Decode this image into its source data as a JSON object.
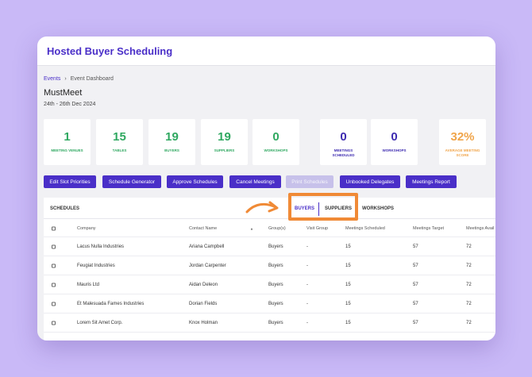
{
  "app": {
    "title": "Hosted Buyer Scheduling"
  },
  "breadcrumb": {
    "link": "Events",
    "separator": "›",
    "current": "Event Dashboard"
  },
  "event": {
    "name": "MustMeet",
    "dates": "24th - 26th Dec 2024"
  },
  "stats": [
    {
      "value": "1",
      "label": "MEETING VENUES",
      "color": "#2fa860"
    },
    {
      "value": "15",
      "label": "TABLES",
      "color": "#2fa860"
    },
    {
      "value": "19",
      "label": "BUYERS",
      "color": "#2fa860"
    },
    {
      "value": "19",
      "label": "SUPPLIERS",
      "color": "#2fa860"
    },
    {
      "value": "0",
      "label": "WORKSHOPS",
      "color": "#2fa860"
    },
    {
      "value": "0",
      "label": "MEETINGS SCHEDULED",
      "color": "#3d2bb0"
    },
    {
      "value": "0",
      "label": "WORKSHOPS",
      "color": "#3d2bb0"
    },
    {
      "value": "32%",
      "label": "AVERAGE MEETING SCORE",
      "color": "#f0a54b"
    }
  ],
  "actions": [
    {
      "label": "Edit Slot Priorities"
    },
    {
      "label": "Schedule Generator"
    },
    {
      "label": "Approve Schedules"
    },
    {
      "label": "Cancel Meetings"
    },
    {
      "label": "Print Schedules",
      "disabled": true
    },
    {
      "label": "Unbooked Delegates"
    },
    {
      "label": "Meetings Report"
    }
  ],
  "schedules": {
    "title": "SCHEDULES",
    "tabs": [
      {
        "label": "BUYERS",
        "active": true
      },
      {
        "label": "SUPPLIERS"
      },
      {
        "label": "WORKSHOPS"
      }
    ],
    "columns": {
      "company": "Company",
      "contact": "Contact Name",
      "sort_indicator": "▲",
      "groups": "Group(s)",
      "visit_group": "Visit Group",
      "meetings_scheduled": "Meetings Scheduled",
      "meetings_target": "Meetings Target",
      "meetings_available": "Meetings Avail"
    },
    "rows": [
      {
        "company": "Lacus Nulla Industries",
        "contact": "Ariana Campbell",
        "groups": "Buyers",
        "visit_group": "-",
        "scheduled": "15",
        "target": "57",
        "available": "72"
      },
      {
        "company": "Feugiat Industries",
        "contact": "Jordan Carpenter",
        "groups": "Buyers",
        "visit_group": "-",
        "scheduled": "15",
        "target": "57",
        "available": "72"
      },
      {
        "company": "Mauris Ltd",
        "contact": "Aidan Deleon",
        "groups": "Buyers",
        "visit_group": "-",
        "scheduled": "15",
        "target": "57",
        "available": "72"
      },
      {
        "company": "Et Malesuada Fames Industries",
        "contact": "Dorian Fields",
        "groups": "Buyers",
        "visit_group": "-",
        "scheduled": "15",
        "target": "57",
        "available": "72"
      },
      {
        "company": "Lorem Sit Amet Corp.",
        "contact": "Knox Holman",
        "groups": "Buyers",
        "visit_group": "-",
        "scheduled": "15",
        "target": "57",
        "available": "72"
      }
    ]
  },
  "colors": {
    "accent": "#4a2fc8",
    "highlight": "#f08a36",
    "background": "#c9b9f7"
  }
}
